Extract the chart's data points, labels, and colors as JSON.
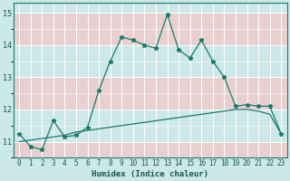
{
  "xlabel": "Humidex (Indice chaleur)",
  "bg_color": "#cce8e8",
  "plot_bg_color": "#cce8e8",
  "band_color": "#e8d0d0",
  "grid_color": "#ffffff",
  "line_color": "#1a7a6e",
  "xlim": [
    -0.5,
    23.5
  ],
  "ylim": [
    10.5,
    15.3
  ],
  "yticks": [
    11,
    12,
    13,
    14,
    15
  ],
  "xticks": [
    0,
    1,
    2,
    3,
    4,
    5,
    6,
    7,
    8,
    9,
    10,
    11,
    12,
    13,
    14,
    15,
    16,
    17,
    18,
    19,
    20,
    21,
    22,
    23
  ],
  "line1_x": [
    0,
    1,
    2,
    3,
    4,
    5,
    6,
    7,
    8,
    9,
    10,
    11,
    12,
    13,
    14,
    15,
    16,
    17,
    18,
    19,
    20,
    21,
    22,
    23
  ],
  "line1_y": [
    11.25,
    10.85,
    10.75,
    11.65,
    11.15,
    11.2,
    11.45,
    12.6,
    13.5,
    14.25,
    14.15,
    14.0,
    13.9,
    14.95,
    13.85,
    13.6,
    14.15,
    13.5,
    13.0,
    12.1,
    12.15,
    12.1,
    12.1,
    11.25
  ],
  "line2_x": [
    0,
    1,
    2,
    3,
    4,
    5,
    6,
    7,
    8,
    9,
    10,
    11,
    12,
    13,
    14,
    15,
    16,
    17,
    18,
    19,
    20,
    21,
    22,
    23
  ],
  "line2_y": [
    11.0,
    11.05,
    11.1,
    11.15,
    11.2,
    11.3,
    11.35,
    11.4,
    11.45,
    11.5,
    11.55,
    11.6,
    11.65,
    11.7,
    11.75,
    11.8,
    11.85,
    11.9,
    11.95,
    12.0,
    12.0,
    11.95,
    11.85,
    11.25
  ],
  "xlabel_fontsize": 6.5,
  "tick_fontsize": 5.5
}
